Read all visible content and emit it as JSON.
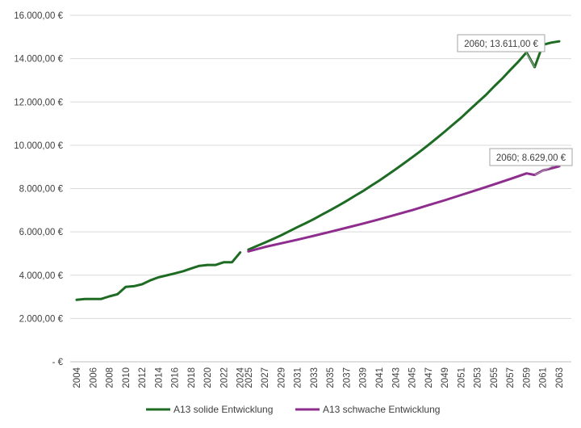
{
  "chart_data": {
    "type": "line",
    "title": "",
    "xlabel": "",
    "ylabel": "",
    "ylim": [
      0,
      16000
    ],
    "y_ticks": [
      0,
      2000,
      4000,
      6000,
      8000,
      10000,
      12000,
      14000,
      16000
    ],
    "y_tick_labels": [
      "-  €",
      "2.000,00 €",
      "4.000,00 €",
      "6.000,00 €",
      "8.000,00 €",
      "10.000,00 €",
      "12.000,00 €",
      "14.000,00 €",
      "16.000,00 €"
    ],
    "x_range": [
      2004,
      2063
    ],
    "x_tick_labels": [
      "2004",
      "2006",
      "2008",
      "2010",
      "2012",
      "2014",
      "2016",
      "2018",
      "2020",
      "2022",
      "2024",
      "2025",
      "2027",
      "2029",
      "2031",
      "2033",
      "2035",
      "2037",
      "2039",
      "2041",
      "2043",
      "2045",
      "2047",
      "2049",
      "2051",
      "2053",
      "2055",
      "2057",
      "2059",
      "2061",
      "2063"
    ],
    "grid": "horizontal",
    "legend_position": "bottom",
    "colors": {
      "solide": "#1e6b24",
      "schwach": "#8e2d8e",
      "grid": "#d9d9d9",
      "axis": "#bfbfbf"
    },
    "series": [
      {
        "name": "A13 solide Entwicklung",
        "color": "#1e6b24",
        "segments": [
          {
            "x": [
              2004,
              2005,
              2006,
              2007,
              2008,
              2009,
              2010,
              2011,
              2012,
              2013,
              2014,
              2015,
              2016,
              2017,
              2018,
              2019,
              2020,
              2021,
              2022,
              2023,
              2024
            ],
            "y": [
              2860,
              2900,
              2900,
              2900,
              3020,
              3120,
              3460,
              3490,
              3580,
              3760,
              3900,
              3990,
              4080,
              4180,
              4310,
              4430,
              4470,
              4470,
              4600,
              4600,
              5050
            ]
          },
          {
            "x": [
              2025,
              2026,
              2027,
              2028,
              2029,
              2030,
              2031,
              2032,
              2033,
              2034,
              2035,
              2036,
              2037,
              2038,
              2039,
              2040,
              2041,
              2042,
              2043,
              2044,
              2045,
              2046,
              2047,
              2048,
              2049,
              2050,
              2051,
              2052,
              2053,
              2054,
              2055,
              2056,
              2057,
              2058,
              2059,
              2060,
              2061,
              2062,
              2063
            ],
            "y": [
              5180,
              5340,
              5500,
              5670,
              5840,
              6030,
              6220,
              6400,
              6590,
              6800,
              7000,
              7210,
              7430,
              7660,
              7880,
              8130,
              8370,
              8630,
              8890,
              9160,
              9440,
              9720,
              10010,
              10320,
              10630,
              10950,
              11270,
              11620,
              11970,
              12310,
              12700,
              13070,
              13470,
              13860,
              14290,
              13611,
              14640,
              14740,
              14800
            ]
          }
        ]
      },
      {
        "name": "A13 schwache Entwicklung",
        "color": "#8e2d8e",
        "segments": [
          {
            "x": [
              2025,
              2027,
              2029,
              2031,
              2033,
              2035,
              2037,
              2039,
              2041,
              2043,
              2045,
              2047,
              2049,
              2051,
              2053,
              2055,
              2057,
              2059,
              2060,
              2061,
              2063
            ],
            "y": [
              5100,
              5300,
              5470,
              5640,
              5820,
              6000,
              6190,
              6380,
              6580,
              6790,
              7000,
              7230,
              7460,
              7700,
              7940,
              8190,
              8440,
              8700,
              8629,
              8830,
              9030
            ]
          }
        ]
      }
    ],
    "annotations": [
      {
        "series": "A13 solide Entwicklung",
        "x": 2060,
        "y": 13611,
        "text": "2060;  13.611,00 €"
      },
      {
        "series": "A13 schwache Entwicklung",
        "x": 2060,
        "y": 8629,
        "text": "2060;  8.629,00 €"
      }
    ]
  }
}
